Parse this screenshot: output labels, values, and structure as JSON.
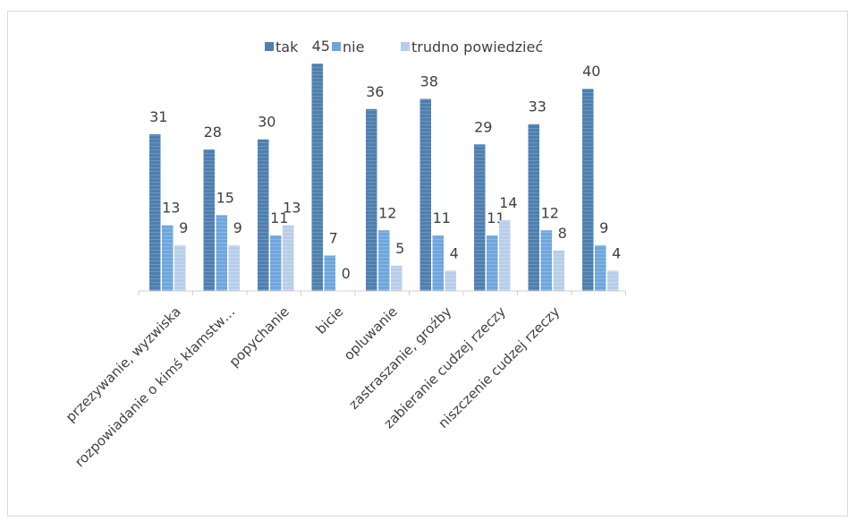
{
  "chart_data": {
    "type": "bar",
    "title": "",
    "xlabel": "",
    "ylabel": "",
    "ylim": [
      0,
      45
    ],
    "grid": false,
    "legend_position": "top",
    "categories": [
      "przezywanie, wyzwiska",
      "rozpowiadanie o kimś kłamstw…",
      "popychanie",
      "bicie",
      "opluwanie",
      "zastraszanie, groźby",
      "zabieranie cudzej rzeczy",
      "niszczenie cudzej rzeczy",
      ""
    ],
    "series": [
      {
        "name": "tak",
        "color": "#4f7faf",
        "values": [
          31,
          28,
          30,
          45,
          36,
          38,
          29,
          33,
          40
        ]
      },
      {
        "name": "nie",
        "color": "#6fa6dc",
        "values": [
          13,
          15,
          11,
          7,
          12,
          11,
          11,
          12,
          9
        ]
      },
      {
        "name": "trudno powiedzieć",
        "color": "#b7cdea",
        "values": [
          9,
          9,
          13,
          0,
          5,
          4,
          14,
          8,
          4
        ]
      }
    ]
  }
}
